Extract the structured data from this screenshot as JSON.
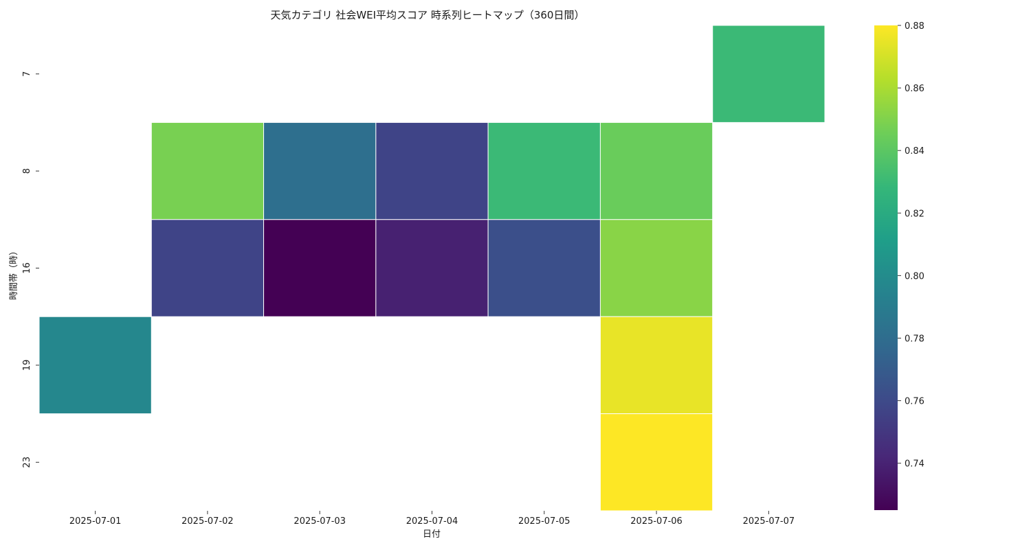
{
  "chart_data": {
    "type": "heatmap",
    "title": "天気カテゴリ 社会WEI平均スコア 時系列ヒートマップ（360日間）",
    "xlabel": "日付",
    "ylabel": "時間帯（時）",
    "x_categories": [
      "2025-07-01",
      "2025-07-02",
      "2025-07-03",
      "2025-07-04",
      "2025-07-05",
      "2025-07-06",
      "2025-07-07"
    ],
    "y_categories": [
      "7",
      "8",
      "16",
      "19",
      "23"
    ],
    "values": [
      [
        null,
        null,
        null,
        null,
        null,
        null,
        0.83
      ],
      [
        null,
        0.848,
        0.781,
        0.757,
        0.83,
        0.844,
        null
      ],
      [
        null,
        0.757,
        0.725,
        0.739,
        0.763,
        0.852,
        null
      ],
      [
        0.797,
        null,
        null,
        null,
        null,
        0.875,
        null
      ],
      [
        null,
        null,
        null,
        null,
        null,
        0.88,
        null
      ]
    ],
    "colorscale": "viridis",
    "colorbar": {
      "vmin": 0.725,
      "vmax": 0.88,
      "ticks": [
        0.74,
        0.76,
        0.78,
        0.8,
        0.82,
        0.84,
        0.86,
        0.88
      ],
      "tick_labels": [
        "0.74",
        "0.76",
        "0.78",
        "0.80",
        "0.82",
        "0.84",
        "0.86",
        "0.88"
      ]
    }
  }
}
